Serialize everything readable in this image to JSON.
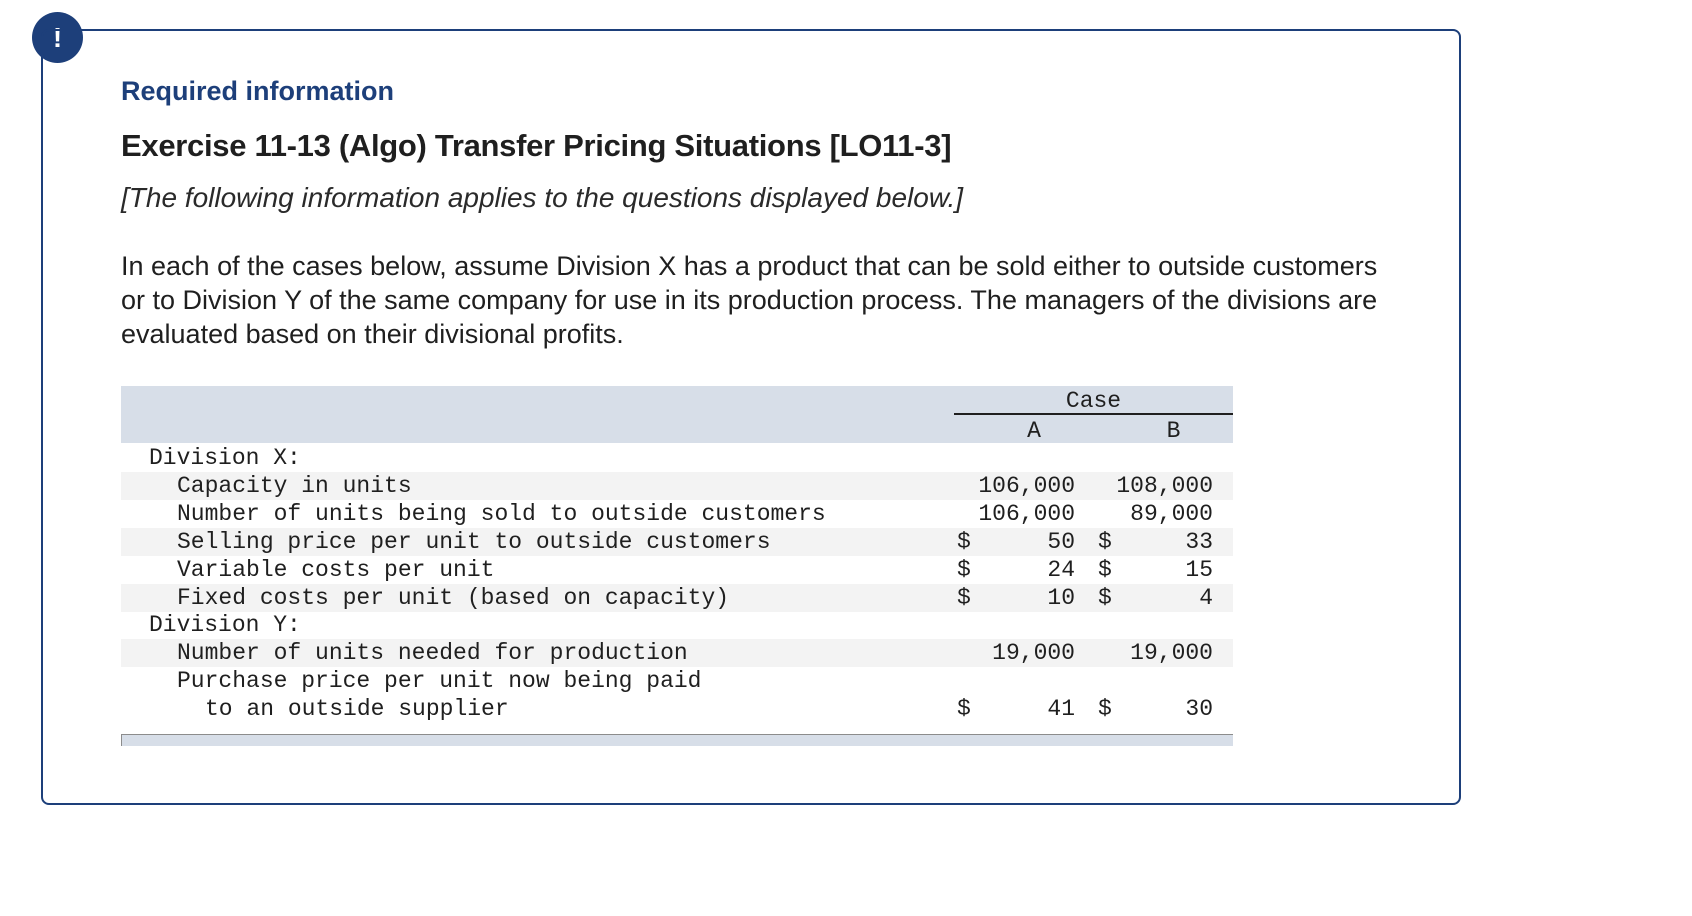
{
  "alert_badge": "!",
  "header": {
    "required_info": "Required information",
    "exercise_title": "Exercise 11-13 (Algo) Transfer Pricing Situations [LO11-3]",
    "note": "[The following information applies to the questions displayed below.]"
  },
  "intro_text": "In each of the cases below, assume Division X has a product that can be sold either to outside customers or to Division Y of the same company for use in its production process. The managers of the divisions are evaluated based on their divisional profits.",
  "table": {
    "group_header": "Case",
    "columns": [
      "A",
      "B"
    ],
    "division_x": {
      "label": "Division X:",
      "rows": [
        {
          "label": "Capacity in units",
          "a": "106,000",
          "b": "108,000",
          "a_prefix": "",
          "b_prefix": ""
        },
        {
          "label": "Number of units being sold to outside customers",
          "a": "106,000",
          "b": "89,000",
          "a_prefix": "",
          "b_prefix": ""
        },
        {
          "label": "Selling price per unit to outside customers",
          "a": "50",
          "b": "33",
          "a_prefix": "$",
          "b_prefix": "$"
        },
        {
          "label": "Variable costs per unit",
          "a": "24",
          "b": "15",
          "a_prefix": "$",
          "b_prefix": "$"
        },
        {
          "label": "Fixed costs per unit (based on capacity)",
          "a": "10",
          "b": "4",
          "a_prefix": "$",
          "b_prefix": "$"
        }
      ]
    },
    "division_y": {
      "label": "Division Y:",
      "rows": [
        {
          "label": "Number of units needed for production",
          "a": "19,000",
          "b": "19,000",
          "a_prefix": "",
          "b_prefix": ""
        },
        {
          "label": "Purchase price per unit now being paid",
          "label_line2": "to an outside supplier",
          "a": "41",
          "b": "30",
          "a_prefix": "$",
          "b_prefix": "$"
        }
      ]
    }
  }
}
